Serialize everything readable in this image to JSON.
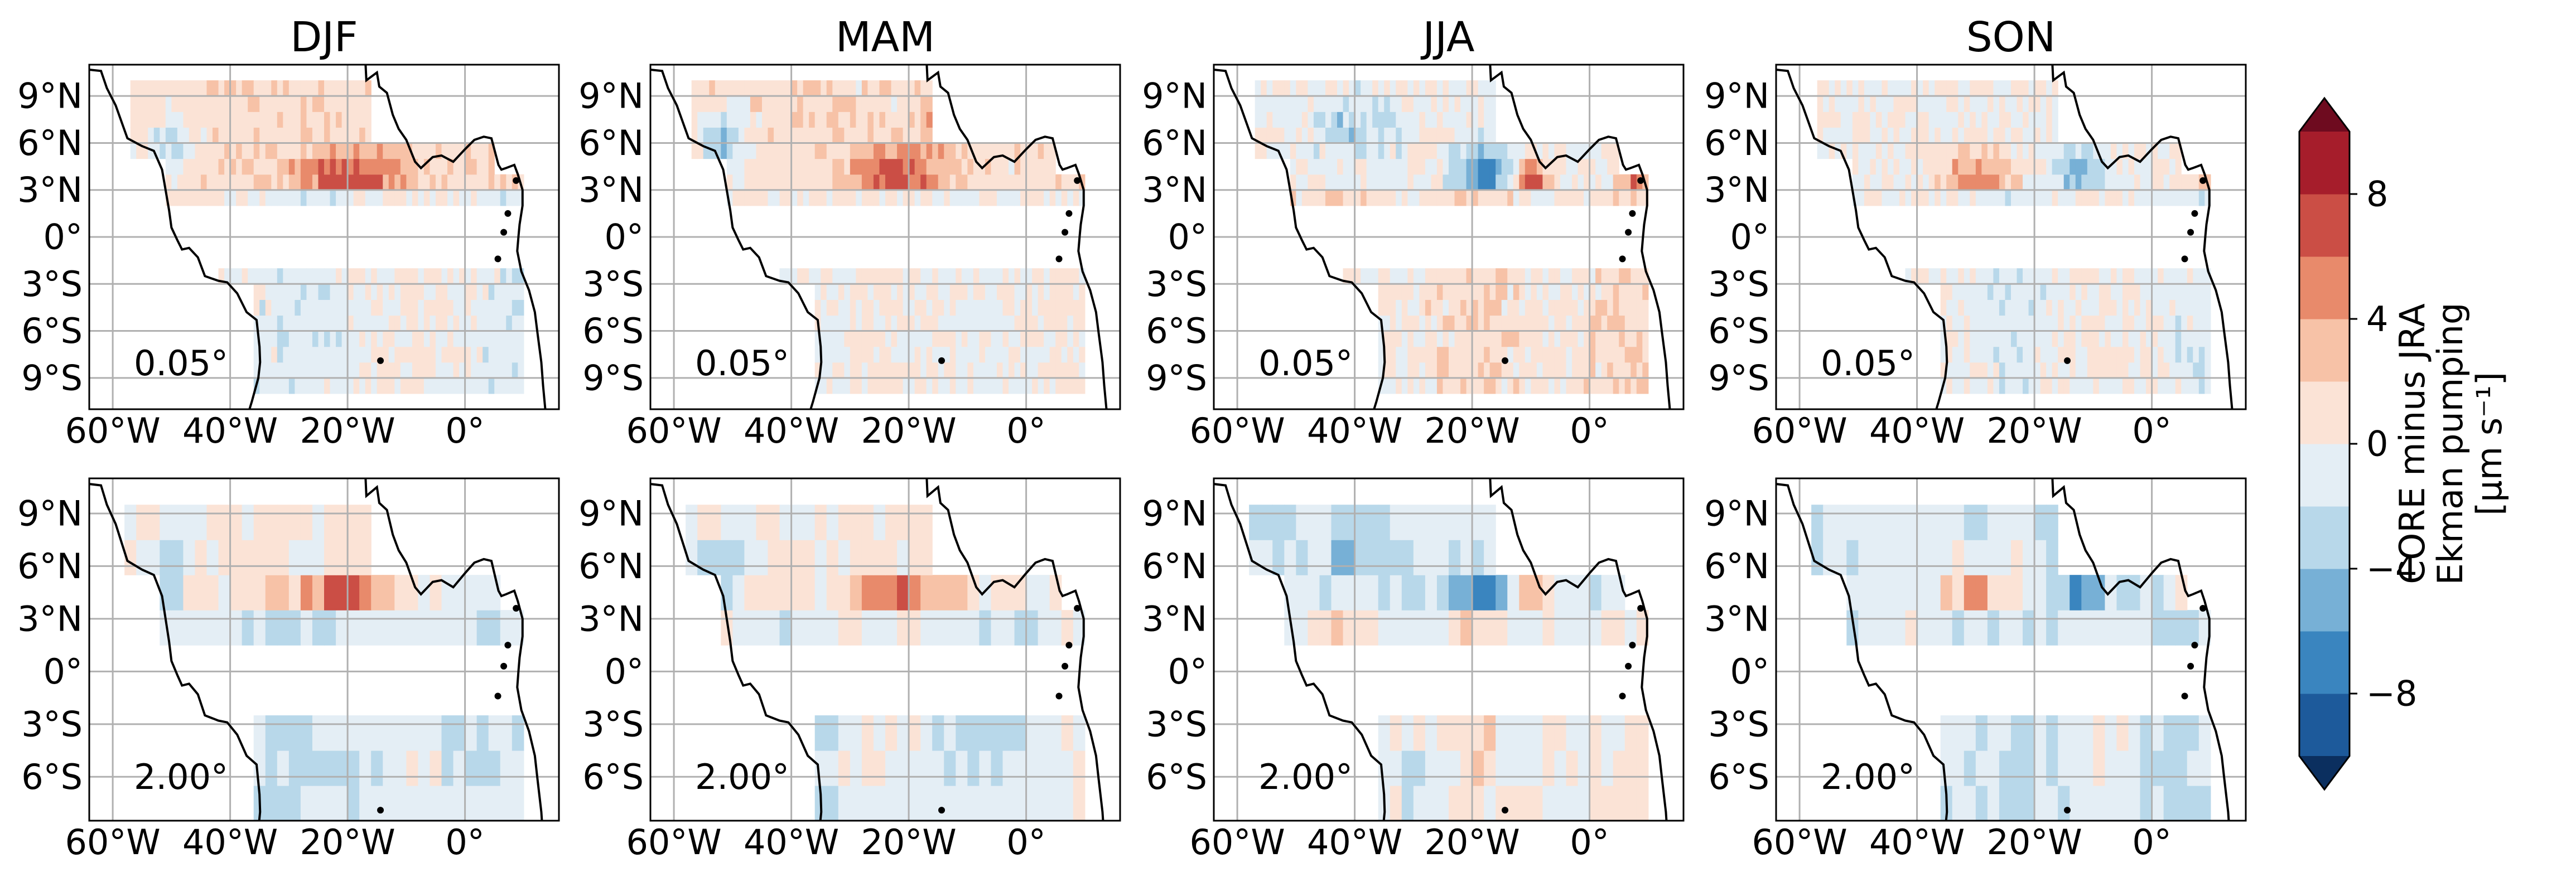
{
  "chart_data": {
    "type": "heatmap",
    "seasons": [
      "DJF",
      "MAM",
      "JJA",
      "SON"
    ],
    "resolutions": [
      "0.05°",
      "2.00°"
    ],
    "x_ticks": [
      {
        "value": -60,
        "label": "60°W"
      },
      {
        "value": -40,
        "label": "40°W"
      },
      {
        "value": -20,
        "label": "20°W"
      },
      {
        "value": 0,
        "label": "0°"
      }
    ],
    "y_ticks_row1": [
      {
        "value": 9,
        "label": "9°N"
      },
      {
        "value": 6,
        "label": "6°N"
      },
      {
        "value": 3,
        "label": "3°N"
      },
      {
        "value": 0,
        "label": "0°"
      },
      {
        "value": -3,
        "label": "3°S"
      },
      {
        "value": -6,
        "label": "6°S"
      },
      {
        "value": -9,
        "label": "9°S"
      }
    ],
    "y_ticks_row2": [
      {
        "value": 9,
        "label": "9°N"
      },
      {
        "value": 6,
        "label": "6°N"
      },
      {
        "value": 3,
        "label": "3°N"
      },
      {
        "value": 0,
        "label": "0°"
      },
      {
        "value": -3,
        "label": "3°S"
      },
      {
        "value": -6,
        "label": "6°S"
      }
    ],
    "row1_extent": {
      "lon": [
        -64,
        16
      ],
      "lat": [
        -11,
        11
      ]
    },
    "row2_extent": {
      "lon": [
        -64,
        16
      ],
      "lat": [
        -8.5,
        11
      ]
    },
    "gap_band_lat": [
      -2.5,
      2.5
    ],
    "grid": true,
    "colorbar": {
      "label_line1": "CORE minus JRA",
      "label_line2": "Ekman pumping",
      "unit": "[μm s⁻¹]",
      "ticks": [
        "8",
        "4",
        "0",
        "−4",
        "−8"
      ],
      "tick_values": [
        8,
        4,
        0,
        -4,
        -8
      ],
      "levels": [
        -10,
        -8,
        -6,
        -4,
        -2,
        0,
        2,
        4,
        6,
        8,
        10
      ],
      "colors": [
        "#1d5a9b",
        "#3a85bf",
        "#77b0d6",
        "#b8d8ea",
        "#e4eef5",
        "#fbe3d6",
        "#f7c2a7",
        "#e88a6b",
        "#cb4e45",
        "#a61d2b"
      ],
      "under_color": "#0b2f5f",
      "over_color": "#6e0b1f",
      "extend": "both"
    }
  }
}
